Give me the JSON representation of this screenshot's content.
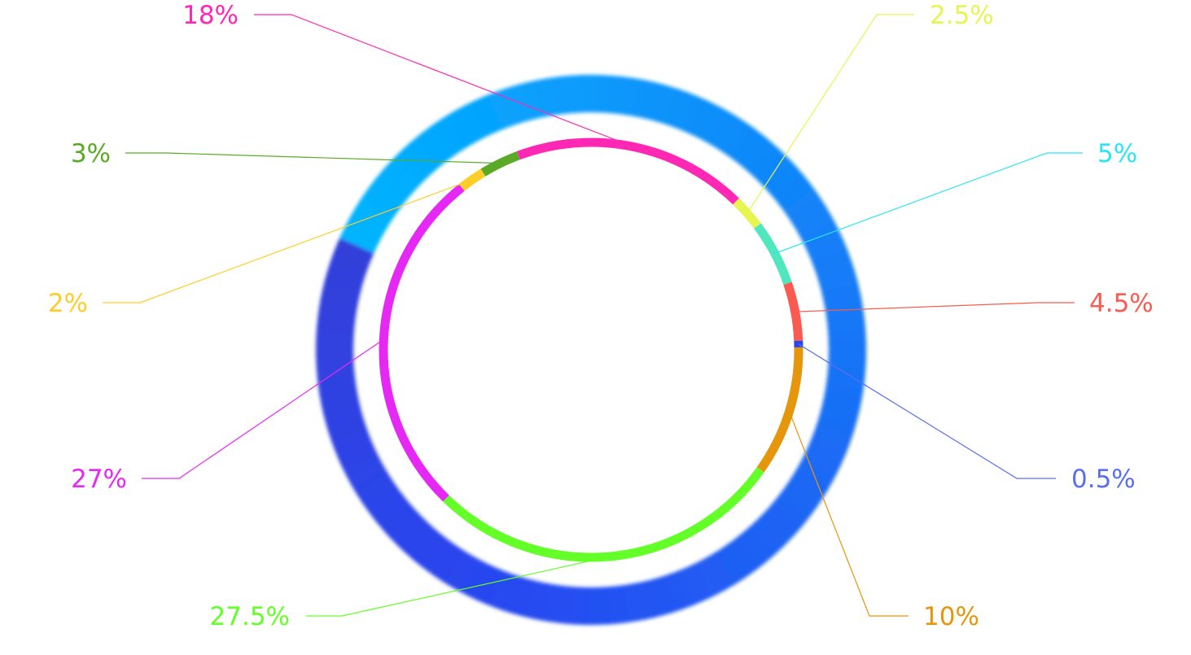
{
  "chart_data": {
    "type": "pie",
    "variant": "donut",
    "title": "",
    "slices": [
      {
        "label": "18%",
        "value": 18,
        "color": "#ff28b4"
      },
      {
        "label": "2.5%",
        "value": 2.5,
        "color": "#e6f550"
      },
      {
        "label": "5%",
        "value": 5,
        "color": "#50e6be"
      },
      {
        "label": "4.5%",
        "value": 4.5,
        "color": "#fa5a50"
      },
      {
        "label": "0.5%",
        "value": 0.5,
        "color": "#2846f0"
      },
      {
        "label": "10%",
        "value": 10,
        "color": "#e6960a"
      },
      {
        "label": "27.5%",
        "value": 27.5,
        "color": "#64ff28"
      },
      {
        "label": "27%",
        "value": 27,
        "color": "#e628f5"
      },
      {
        "label": "2%",
        "value": 2,
        "color": "#ffcd28"
      },
      {
        "label": "3%",
        "value": 3,
        "color": "#5aaa28"
      }
    ],
    "label_colors": {
      "18%": "#ff28b4",
      "2.5%": "#e6f550",
      "5%": "#28e6f5",
      "4.5%": "#fa5a50",
      "0.5%": "#5a6ef0",
      "10%": "#e6960a",
      "27.5%": "#64ff28",
      "27%": "#e628f5",
      "2%": "#ffcd28",
      "3%": "#5aaa28"
    },
    "legend": "none",
    "decorative_outer_ring_colors": [
      "#00b4ff",
      "#2846f0",
      "#3c3cc8",
      "#b428ff",
      "#7832e6",
      "#50a0dc"
    ]
  }
}
